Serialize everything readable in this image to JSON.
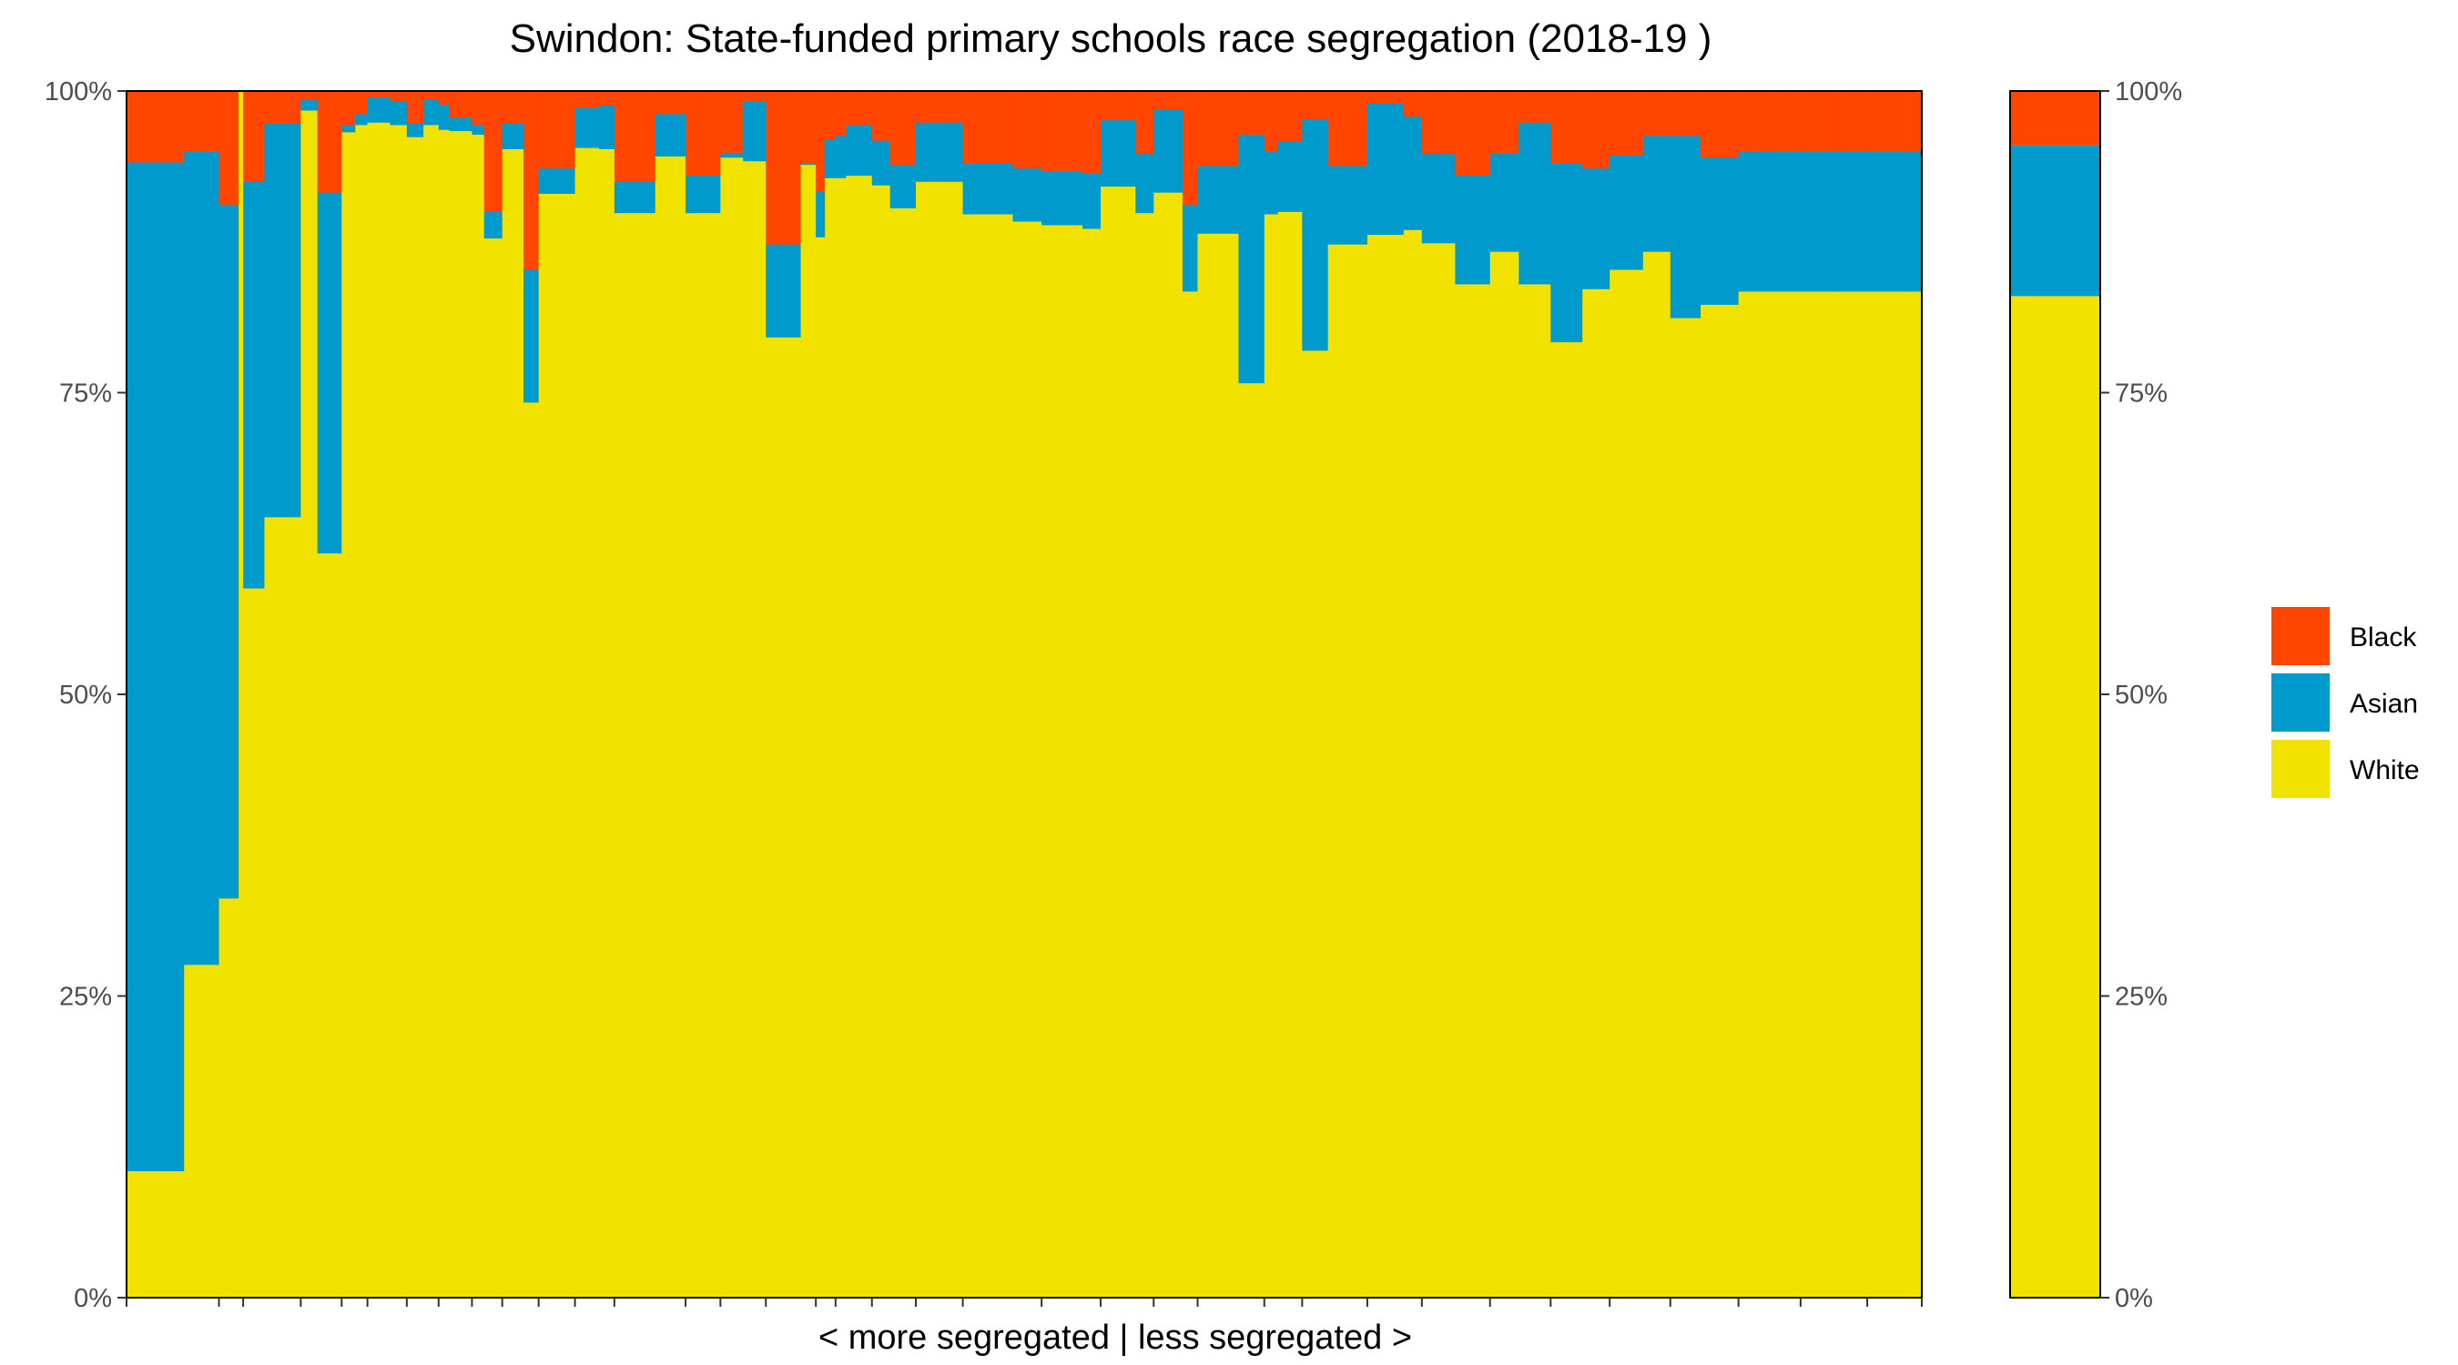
{
  "chart_data": {
    "type": "bar",
    "subtype": "stacked-variable-width",
    "title": "Swindon: State-funded primary schools race segregation (2018-19 )",
    "xlabel": "< more segregated | less segregated >",
    "ylabel": "",
    "ylim": [
      0,
      1
    ],
    "yticks": [
      0,
      0.25,
      0.5,
      0.75,
      1
    ],
    "ytick_labels": [
      "0%",
      "25%",
      "50%",
      "75%",
      "100%"
    ],
    "stack_order": [
      "White",
      "Asian",
      "Black"
    ],
    "legend": {
      "position": "right",
      "entries": [
        {
          "name": "Black",
          "color": "#FF4500"
        },
        {
          "name": "Asian",
          "color": "#009ACD"
        },
        {
          "name": "White",
          "color": "#F2E200"
        }
      ]
    },
    "colors": {
      "Black": "#FF4500",
      "Asian": "#009ACD",
      "White": "#F2E200"
    },
    "schools_widths": [
      3.8,
      2.3,
      1.3,
      0.3,
      1.4,
      2.4,
      1.1,
      1.6,
      0.9,
      0.8,
      1.5,
      1.1,
      1.1,
      1.0,
      0.7,
      1.5,
      0.8,
      1.2,
      1.4,
      1.0,
      1.2,
      1.2,
      1.6,
      1.0,
      2.7,
      2.0,
      0.9,
      1.4,
      1.5,
      1.5,
      2.3,
      1.0,
      0.6,
      0.7,
      0.7,
      1.7,
      1.2,
      1.7,
      1.1,
      2.0,
      3.3,
      1.9,
      2.7,
      1.2,
      2.3,
      1.2,
      1.9,
      1.0,
      2.7,
      1.7,
      0.9,
      1.6,
      1.7,
      2.6,
      2.4,
      1.2,
      2.2,
      2.3,
      1.9,
      2.1,
      2.1,
      1.8,
      2.2,
      1.8,
      2.0,
      2.5,
      2.1,
      2.0,
      2.3,
      2.1,
      3.6
    ],
    "schools": {
      "White": [
        0.105,
        0.276,
        0.331,
        1.0,
        0.588,
        0.647,
        0.984,
        0.617,
        0.966,
        0.972,
        0.974,
        0.972,
        0.962,
        0.972,
        0.968,
        0.967,
        0.964,
        0.878,
        0.952,
        0.742,
        0.915,
        0.915,
        0.953,
        0.952,
        0.899,
        0.946,
        0.899,
        0.899,
        0.945,
        0.942,
        0.796,
        0.939,
        0.879,
        0.928,
        0.928,
        0.93,
        0.922,
        0.903,
        0.925,
        0.925,
        0.898,
        0.892,
        0.889,
        0.886,
        0.921,
        0.899,
        0.916,
        0.834,
        0.882,
        0.758,
        0.898,
        0.9,
        0.785,
        0.873,
        0.881,
        0.885,
        0.874,
        0.84,
        0.867,
        0.84,
        0.792,
        0.836,
        0.852,
        0.867,
        0.812,
        0.823,
        0.834,
        0.834,
        0.834,
        0.834,
        0.834
      ],
      "Asian": [
        0.836,
        0.674,
        0.575,
        0.0,
        0.337,
        0.326,
        0.009,
        0.299,
        0.006,
        0.009,
        0.021,
        0.02,
        0.011,
        0.021,
        0.021,
        0.011,
        0.008,
        0.022,
        0.021,
        0.11,
        0.021,
        0.021,
        0.033,
        0.036,
        0.026,
        0.035,
        0.031,
        0.031,
        0.004,
        0.05,
        0.077,
        0.001,
        0.038,
        0.032,
        0.035,
        0.042,
        0.037,
        0.036,
        0.049,
        0.049,
        0.042,
        0.044,
        0.045,
        0.046,
        0.055,
        0.049,
        0.069,
        0.072,
        0.056,
        0.206,
        0.052,
        0.058,
        0.192,
        0.065,
        0.109,
        0.094,
        0.074,
        0.09,
        0.082,
        0.134,
        0.148,
        0.1,
        0.095,
        0.096,
        0.151,
        0.122,
        0.116,
        0.116,
        0.116,
        0.116,
        0.116
      ],
      "Black": [
        0.059,
        0.05,
        0.094,
        0.0,
        0.075,
        0.027,
        0.007,
        0.084,
        0.028,
        0.019,
        0.005,
        0.008,
        0.027,
        0.007,
        0.011,
        0.022,
        0.028,
        0.1,
        0.027,
        0.148,
        0.064,
        0.064,
        0.014,
        0.012,
        0.075,
        0.019,
        0.07,
        0.07,
        0.051,
        0.008,
        0.127,
        0.06,
        0.083,
        0.04,
        0.037,
        0.028,
        0.041,
        0.061,
        0.026,
        0.026,
        0.06,
        0.064,
        0.066,
        0.068,
        0.024,
        0.052,
        0.015,
        0.094,
        0.062,
        0.036,
        0.05,
        0.042,
        0.023,
        0.062,
        0.01,
        0.021,
        0.052,
        0.07,
        0.051,
        0.026,
        0.06,
        0.064,
        0.053,
        0.037,
        0.037,
        0.055,
        0.05,
        0.05,
        0.05,
        0.05,
        0.05
      ]
    },
    "overall": {
      "White": 0.83,
      "Asian": 0.125,
      "Black": 0.045
    }
  }
}
